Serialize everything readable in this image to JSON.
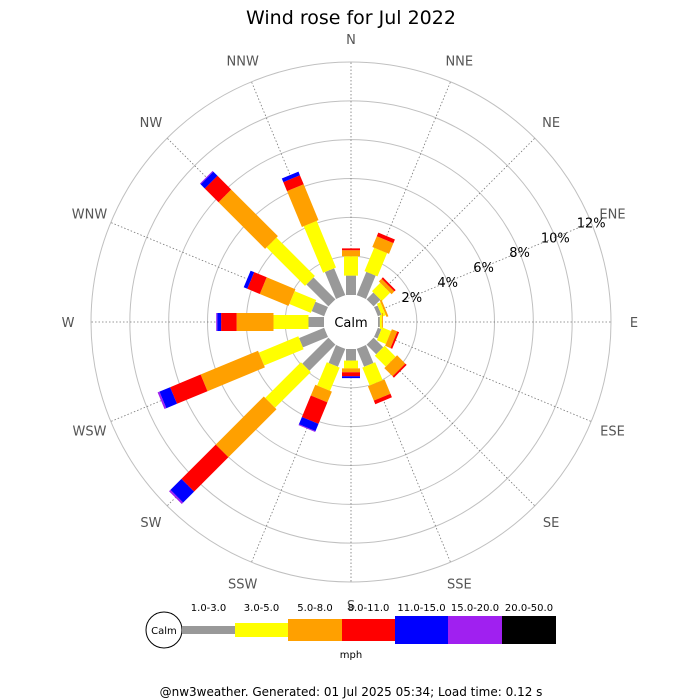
{
  "chart_data": {
    "type": "wind-rose",
    "title": "Wind rose for Jul 2022",
    "directions": [
      "N",
      "NNE",
      "NE",
      "ENE",
      "E",
      "ESE",
      "SE",
      "SSE",
      "S",
      "SSW",
      "SW",
      "WSW",
      "W",
      "WNW",
      "NW",
      "NNW"
    ],
    "radial_ticks": [
      "2%",
      "4%",
      "6%",
      "8%",
      "10%",
      "12%"
    ],
    "radial_tick_values": [
      2,
      4,
      6,
      8,
      10,
      12
    ],
    "rmax": 12,
    "calm_label": "Calm",
    "speed_bins": [
      {
        "label": "1.0-3.0",
        "color": "#999999"
      },
      {
        "label": "3.0-5.0",
        "color": "#ffff00"
      },
      {
        "label": "5.0-8.0",
        "color": "#ffa000"
      },
      {
        "label": "8.0-11.0",
        "color": "#ff0000"
      },
      {
        "label": "11.0-15.0",
        "color": "#0000ff"
      },
      {
        "label": "15.0-20.0",
        "color": "#a020f0"
      },
      {
        "label": "20.0-50.0",
        "color": "#000000"
      }
    ],
    "units": "mph",
    "series": [
      {
        "dir": "N",
        "values": [
          1.0,
          1.0,
          0.3,
          0.1,
          0,
          0,
          0
        ]
      },
      {
        "dir": "NNE",
        "values": [
          1.3,
          1.3,
          0.6,
          0.2,
          0,
          0,
          0
        ]
      },
      {
        "dir": "NE",
        "values": [
          0.5,
          0.6,
          0.2,
          0.1,
          0,
          0,
          0
        ]
      },
      {
        "dir": "ENE",
        "values": [
          0.2,
          0.2,
          0.1,
          0,
          0,
          0,
          0
        ]
      },
      {
        "dir": "E",
        "values": [
          0.1,
          0.1,
          0.05,
          0,
          0,
          0,
          0
        ]
      },
      {
        "dir": "ESE",
        "values": [
          0.2,
          0.5,
          0.3,
          0.1,
          0,
          0,
          0
        ]
      },
      {
        "dir": "SE",
        "values": [
          0.7,
          0.8,
          0.6,
          0.1,
          0,
          0,
          0
        ]
      },
      {
        "dir": "SSE",
        "values": [
          1.0,
          1.0,
          0.8,
          0.2,
          0,
          0,
          0
        ]
      },
      {
        "dir": "S",
        "values": [
          0.6,
          0.4,
          0.2,
          0.2,
          0.1,
          0,
          0
        ]
      },
      {
        "dir": "SSW",
        "values": [
          1.0,
          1.3,
          0.6,
          1.2,
          0.4,
          0.05,
          0
        ]
      },
      {
        "dir": "SW",
        "values": [
          1.9,
          2.6,
          3.5,
          2.5,
          0.8,
          0.1,
          0
        ]
      },
      {
        "dir": "WSW",
        "values": [
          1.4,
          2.2,
          3.2,
          1.7,
          0.6,
          0.1,
          0
        ]
      },
      {
        "dir": "W",
        "values": [
          0.8,
          1.8,
          1.9,
          0.8,
          0.2,
          0.05,
          0
        ]
      },
      {
        "dir": "WNW",
        "values": [
          0.7,
          1.2,
          1.6,
          0.7,
          0.2,
          0,
          0
        ]
      },
      {
        "dir": "NW",
        "values": [
          1.6,
          2.8,
          3.4,
          1.0,
          0.3,
          0.05,
          0
        ]
      },
      {
        "dir": "NNW",
        "values": [
          1.5,
          2.6,
          2.0,
          0.5,
          0.2,
          0,
          0
        ]
      }
    ]
  },
  "footer": "@nw3weather. Generated: 01 Jul 2025 05:34; Load time: 0.12 s"
}
